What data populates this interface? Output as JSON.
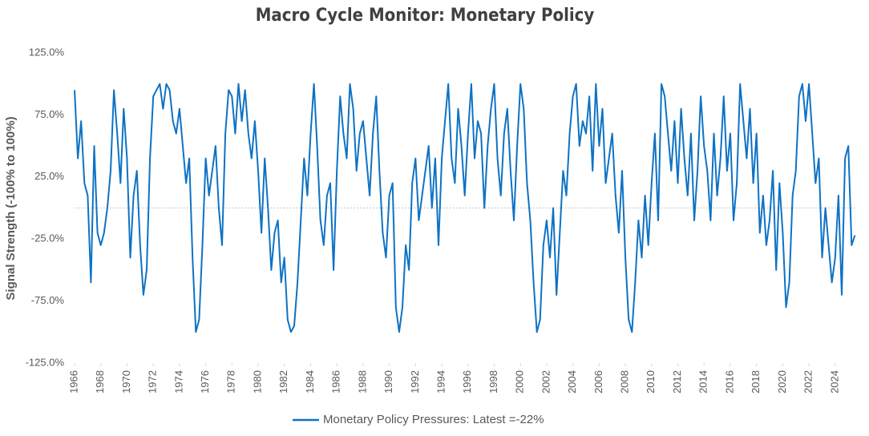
{
  "chart_data": {
    "type": "line",
    "title": "Macro Cycle Monitor: Monetary Policy",
    "y_label": "Signal Strength (-100% to 100%)",
    "xlim": [
      1966,
      2025.6
    ],
    "xticks": [
      1966,
      1968,
      1970,
      1972,
      1974,
      1976,
      1978,
      1980,
      1982,
      1984,
      1986,
      1988,
      1990,
      1992,
      1994,
      1996,
      1998,
      2000,
      2002,
      2004,
      2006,
      2008,
      2010,
      2012,
      2014,
      2016,
      2018,
      2020,
      2022,
      2024
    ],
    "ylim": [
      -125,
      125
    ],
    "yticks": [
      {
        "value": -125,
        "label": "-125.0%"
      },
      {
        "value": -75,
        "label": "-75.0%"
      },
      {
        "value": -25,
        "label": "-25.0%"
      },
      {
        "value": 25,
        "label": "25.0%"
      },
      {
        "value": 75,
        "label": "75.0%"
      },
      {
        "value": 125,
        "label": "125.0%"
      }
    ],
    "zero_line": true,
    "legend": "bottom",
    "x": [
      1966,
      1966.25,
      1966.5,
      1966.75,
      1967,
      1967.25,
      1967.5,
      1967.75,
      1968,
      1968.25,
      1968.5,
      1968.75,
      1969,
      1969.25,
      1969.5,
      1969.75,
      1970,
      1970.25,
      1970.5,
      1970.75,
      1971,
      1971.25,
      1971.5,
      1971.75,
      1972,
      1972.25,
      1972.5,
      1972.75,
      1973,
      1973.25,
      1973.5,
      1973.75,
      1974,
      1974.25,
      1974.5,
      1974.75,
      1975,
      1975.25,
      1975.5,
      1975.75,
      1976,
      1976.25,
      1976.5,
      1976.75,
      1977,
      1977.25,
      1977.5,
      1977.75,
      1978,
      1978.25,
      1978.5,
      1978.75,
      1979,
      1979.25,
      1979.5,
      1979.75,
      1980,
      1980.25,
      1980.5,
      1980.75,
      1981,
      1981.25,
      1981.5,
      1981.75,
      1982,
      1982.25,
      1982.5,
      1982.75,
      1983,
      1983.25,
      1983.5,
      1983.75,
      1984,
      1984.25,
      1984.5,
      1984.75,
      1985,
      1985.25,
      1985.5,
      1985.75,
      1986,
      1986.25,
      1986.5,
      1986.75,
      1987,
      1987.25,
      1987.5,
      1987.75,
      1988,
      1988.25,
      1988.5,
      1988.75,
      1989,
      1989.25,
      1989.5,
      1989.75,
      1990,
      1990.25,
      1990.5,
      1990.75,
      1991,
      1991.25,
      1991.5,
      1991.75,
      1992,
      1992.25,
      1992.5,
      1992.75,
      1993,
      1993.25,
      1993.5,
      1993.75,
      1994,
      1994.25,
      1994.5,
      1994.75,
      1995,
      1995.25,
      1995.5,
      1995.75,
      1996,
      1996.25,
      1996.5,
      1996.75,
      1997,
      1997.25,
      1997.5,
      1997.75,
      1998,
      1998.25,
      1998.5,
      1998.75,
      1999,
      1999.25,
      1999.5,
      1999.75,
      2000,
      2000.25,
      2000.5,
      2000.75,
      2001,
      2001.25,
      2001.5,
      2001.75,
      2002,
      2002.25,
      2002.5,
      2002.75,
      2003,
      2003.25,
      2003.5,
      2003.75,
      2004,
      2004.25,
      2004.5,
      2004.75,
      2005,
      2005.25,
      2005.5,
      2005.75,
      2006,
      2006.25,
      2006.5,
      2006.75,
      2007,
      2007.25,
      2007.5,
      2007.75,
      2008,
      2008.25,
      2008.5,
      2008.75,
      2009,
      2009.25,
      2009.5,
      2009.75,
      2010,
      2010.25,
      2010.5,
      2010.75,
      2011,
      2011.25,
      2011.5,
      2011.75,
      2012,
      2012.25,
      2012.5,
      2012.75,
      2013,
      2013.25,
      2013.5,
      2013.75,
      2014,
      2014.25,
      2014.5,
      2014.75,
      2015,
      2015.25,
      2015.5,
      2015.75,
      2016,
      2016.25,
      2016.5,
      2016.75,
      2017,
      2017.25,
      2017.5,
      2017.75,
      2018,
      2018.25,
      2018.5,
      2018.75,
      2019,
      2019.25,
      2019.5,
      2019.75,
      2020,
      2020.25,
      2020.5,
      2020.75,
      2021,
      2021.25,
      2021.5,
      2021.75,
      2022,
      2022.25,
      2022.5,
      2022.75,
      2023,
      2023.25,
      2023.5,
      2023.75,
      2024,
      2024.25,
      2024.5,
      2024.75,
      2025,
      2025.25,
      2025.5
    ],
    "series": [
      {
        "name": "Monetary Policy Pressures: Latest =-22%",
        "color": "#0e72c4",
        "values": [
          95,
          40,
          70,
          20,
          10,
          -60,
          50,
          -20,
          -30,
          -20,
          0,
          30,
          95,
          60,
          20,
          80,
          40,
          -40,
          10,
          30,
          -30,
          -70,
          -50,
          40,
          90,
          95,
          100,
          80,
          100,
          95,
          70,
          60,
          80,
          50,
          20,
          40,
          -40,
          -100,
          -90,
          -30,
          40,
          10,
          30,
          50,
          0,
          -30,
          60,
          95,
          90,
          60,
          100,
          70,
          95,
          60,
          40,
          70,
          30,
          -20,
          40,
          0,
          -50,
          -20,
          -10,
          -60,
          -40,
          -90,
          -100,
          -95,
          -60,
          -10,
          40,
          10,
          60,
          100,
          50,
          -10,
          -30,
          10,
          20,
          -50,
          30,
          90,
          60,
          40,
          100,
          80,
          30,
          60,
          70,
          40,
          10,
          60,
          90,
          30,
          -20,
          -40,
          10,
          20,
          -80,
          -100,
          -80,
          -30,
          -50,
          20,
          40,
          -10,
          10,
          30,
          50,
          0,
          40,
          -30,
          40,
          70,
          100,
          40,
          20,
          80,
          50,
          10,
          60,
          100,
          40,
          70,
          60,
          0,
          50,
          80,
          100,
          40,
          10,
          60,
          80,
          30,
          -10,
          50,
          100,
          80,
          20,
          -10,
          -60,
          -100,
          -90,
          -30,
          -10,
          -40,
          0,
          -70,
          -20,
          30,
          10,
          60,
          90,
          100,
          50,
          70,
          60,
          90,
          30,
          100,
          50,
          80,
          20,
          40,
          60,
          10,
          -20,
          30,
          -40,
          -90,
          -100,
          -60,
          -10,
          -40,
          10,
          -30,
          20,
          60,
          -10,
          100,
          90,
          60,
          30,
          70,
          20,
          80,
          40,
          10,
          60,
          -10,
          30,
          90,
          50,
          30,
          -10,
          60,
          10,
          40,
          90,
          30,
          60,
          -10,
          20,
          100,
          70,
          40,
          80,
          20,
          60,
          -20,
          10,
          -30,
          -10,
          30,
          -50,
          20,
          -20,
          -80,
          -60,
          10,
          30,
          90,
          100,
          70,
          100,
          60,
          20,
          40,
          -40,
          0,
          -30,
          -60,
          -40,
          10,
          -70,
          40,
          50,
          -30,
          -22
        ]
      }
    ]
  }
}
